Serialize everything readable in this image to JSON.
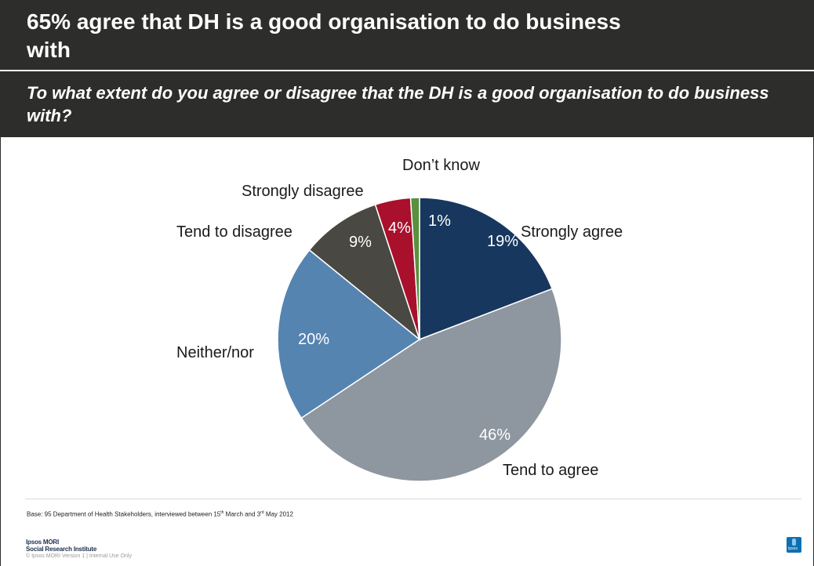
{
  "header": {
    "title": "65% agree that DH is a good organisation to do business with",
    "question": "To what extent do you agree or disagree that the DH is a good organisation to do business with?"
  },
  "chart_data": {
    "type": "pie",
    "start": "12 o'clock",
    "direction": "clockwise",
    "slices": [
      {
        "label": "Strongly agree",
        "value": 19,
        "value_label": "19%",
        "color": "#17375e"
      },
      {
        "label": "Tend to agree",
        "value": 46,
        "value_label": "46%",
        "color": "#8e969f"
      },
      {
        "label": "Neither/nor",
        "value": 20,
        "value_label": "20%",
        "color": "#5584b1"
      },
      {
        "label": "Tend to disagree",
        "value": 9,
        "value_label": "9%",
        "color": "#4a4842"
      },
      {
        "label": "Strongly disagree",
        "value": 4,
        "value_label": "4%",
        "color": "#a8102c"
      },
      {
        "label": "Don’t know",
        "value": 1,
        "value_label": "1%",
        "color": "#5a9140"
      }
    ]
  },
  "footer": {
    "base_prefix": "Base: 95 Department of Health Stakeholders, interviewed between 15",
    "base_sup1": "th",
    "base_mid": " March and 3",
    "base_sup2": "rd",
    "base_suffix": " May 2012",
    "logo_line1": "Ipsos MORI",
    "logo_line2": "Social Research Institute",
    "copyright": "© Ipsos MORI     Version 1 | Internal Use Only",
    "brand_text": "Ipsos"
  }
}
